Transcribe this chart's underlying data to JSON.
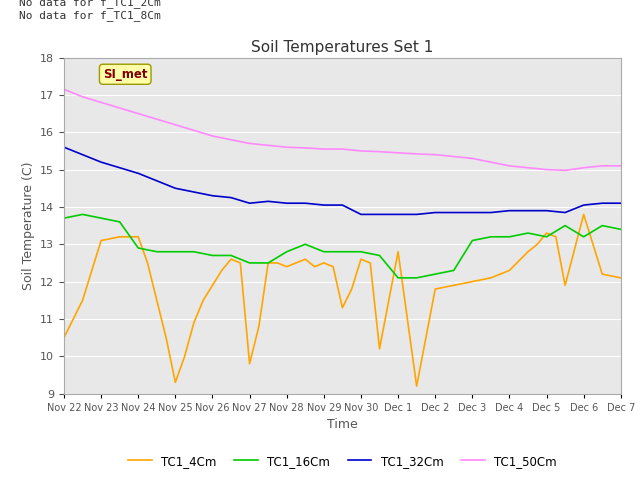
{
  "title": "Soil Temperatures Set 1",
  "xlabel": "Time",
  "ylabel": "Soil Temperature (C)",
  "ylim": [
    9.0,
    18.0
  ],
  "yticks": [
    9.0,
    10.0,
    11.0,
    12.0,
    13.0,
    14.0,
    15.0,
    16.0,
    17.0,
    18.0
  ],
  "bg_color": "#e8e8e8",
  "annotation_text": "No data for f_TC1_2Cm\nNo data for f_TC1_8Cm",
  "button_text": "SI_met",
  "x_labels": [
    "Nov 22",
    "Nov 23",
    "Nov 24",
    "Nov 25",
    "Nov 26",
    "Nov 27",
    "Nov 28",
    "Nov 29",
    "Nov 30",
    "Dec 1",
    "Dec 2",
    "Dec 3",
    "Dec 4",
    "Dec 5",
    "Dec 6",
    "Dec 7"
  ],
  "TC1_4Cm": {
    "x": [
      0,
      0.5,
      1.0,
      1.5,
      2.0,
      2.25,
      2.5,
      2.75,
      3.0,
      3.25,
      3.5,
      3.75,
      4.0,
      4.25,
      4.5,
      4.75,
      5.0,
      5.25,
      5.5,
      5.75,
      6.0,
      6.25,
      6.5,
      6.75,
      7.0,
      7.25,
      7.5,
      7.75,
      8.0,
      8.25,
      8.5,
      9.0,
      9.5,
      10.0,
      10.5,
      11.0,
      11.5,
      12.0,
      12.5,
      12.75,
      13.0,
      13.25,
      13.5,
      14.0,
      14.5,
      15.0
    ],
    "y": [
      10.5,
      11.5,
      13.1,
      13.2,
      13.2,
      12.5,
      11.5,
      10.5,
      9.3,
      10.0,
      10.9,
      11.5,
      11.9,
      12.3,
      12.6,
      12.5,
      9.8,
      10.8,
      12.5,
      12.5,
      12.4,
      12.5,
      12.6,
      12.4,
      12.5,
      12.4,
      11.3,
      11.8,
      12.6,
      12.5,
      10.2,
      12.8,
      9.2,
      11.8,
      11.9,
      12.0,
      12.1,
      12.3,
      12.8,
      13.0,
      13.3,
      13.2,
      11.9,
      13.8,
      12.2,
      12.1
    ],
    "color": "#ffa500",
    "label": "TC1_4Cm"
  },
  "TC1_16Cm": {
    "x": [
      0,
      0.5,
      1.0,
      1.5,
      2.0,
      2.5,
      3.0,
      3.5,
      4.0,
      4.5,
      5.0,
      5.5,
      6.0,
      6.5,
      7.0,
      7.5,
      8.0,
      8.5,
      9.0,
      9.5,
      10.0,
      10.5,
      11.0,
      11.5,
      12.0,
      12.5,
      13.0,
      13.25,
      13.5,
      14.0,
      14.5,
      15.0
    ],
    "y": [
      13.7,
      13.8,
      13.7,
      13.6,
      12.9,
      12.8,
      12.8,
      12.8,
      12.7,
      12.7,
      12.5,
      12.5,
      12.8,
      13.0,
      12.8,
      12.8,
      12.8,
      12.7,
      12.1,
      12.1,
      12.2,
      12.3,
      13.1,
      13.2,
      13.2,
      13.3,
      13.2,
      13.35,
      13.5,
      13.2,
      13.5,
      13.4
    ],
    "color": "#00cc00",
    "label": "TC1_16Cm"
  },
  "TC1_32Cm": {
    "x": [
      0,
      0.5,
      1.0,
      1.5,
      2.0,
      2.5,
      3.0,
      3.5,
      4.0,
      4.5,
      5.0,
      5.5,
      6.0,
      6.5,
      7.0,
      7.5,
      8.0,
      8.5,
      9.0,
      9.5,
      10.0,
      10.5,
      11.0,
      11.5,
      12.0,
      12.5,
      13.0,
      13.5,
      14.0,
      14.5,
      15.0
    ],
    "y": [
      15.6,
      15.4,
      15.2,
      15.05,
      14.9,
      14.7,
      14.5,
      14.4,
      14.3,
      14.25,
      14.1,
      14.15,
      14.1,
      14.1,
      14.05,
      14.05,
      13.8,
      13.8,
      13.8,
      13.8,
      13.85,
      13.85,
      13.85,
      13.85,
      13.9,
      13.9,
      13.9,
      13.85,
      14.05,
      14.1,
      14.1
    ],
    "color": "#0000cc",
    "label": "TC1_32Cm"
  },
  "TC1_50Cm": {
    "x": [
      0,
      0.5,
      1.0,
      1.5,
      2.0,
      2.5,
      3.0,
      3.5,
      4.0,
      4.5,
      5.0,
      5.5,
      6.0,
      6.5,
      7.0,
      7.5,
      8.0,
      8.5,
      9.0,
      9.5,
      10.0,
      10.5,
      11.0,
      11.5,
      12.0,
      12.5,
      13.0,
      13.5,
      14.0,
      14.5,
      15.0
    ],
    "y": [
      17.15,
      16.95,
      16.8,
      16.65,
      16.5,
      16.35,
      16.2,
      16.05,
      15.9,
      15.8,
      15.7,
      15.65,
      15.6,
      15.58,
      15.55,
      15.55,
      15.5,
      15.48,
      15.45,
      15.42,
      15.4,
      15.35,
      15.3,
      15.2,
      15.1,
      15.05,
      15.0,
      14.98,
      15.05,
      15.1,
      15.1
    ],
    "color": "#ff88ff",
    "label": "TC1_50Cm"
  }
}
